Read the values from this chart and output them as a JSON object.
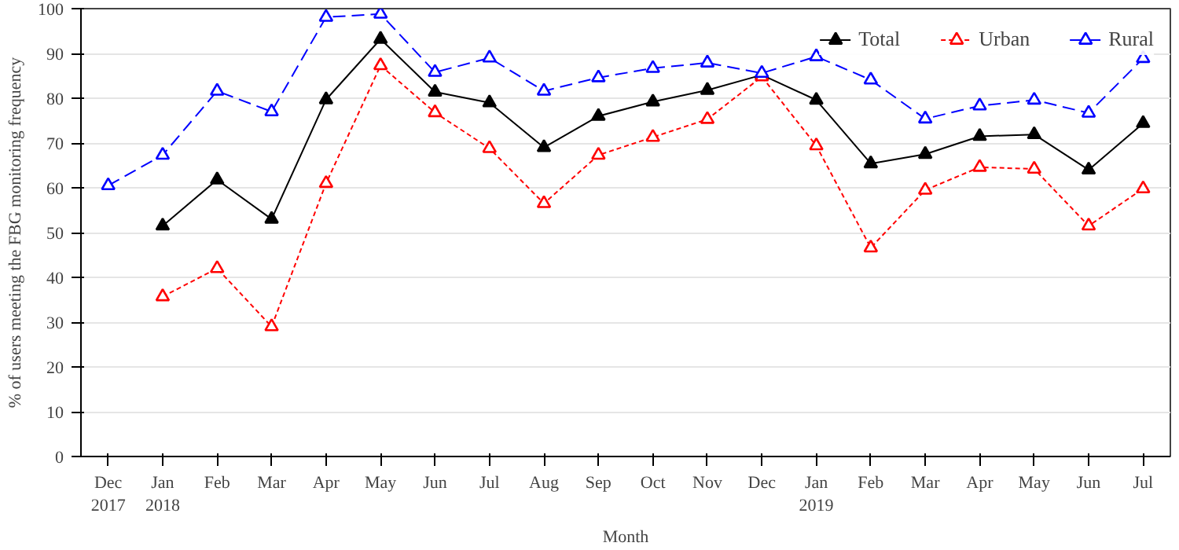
{
  "chart_data": {
    "type": "line",
    "xlabel": "Month",
    "ylabel": "% of users meeting the FBG monitoring frequency",
    "categories": [
      "Dec\n2017",
      "Jan\n2018",
      "Feb",
      "Mar",
      "Apr",
      "May",
      "Jun",
      "Jul",
      "Aug",
      "Sep",
      "Oct",
      "Nov",
      "Dec",
      "Jan\n2019",
      "Feb",
      "Mar",
      "Apr",
      "May",
      "Jun",
      "Jul"
    ],
    "series": [
      {
        "name": "Total",
        "color": "#000000",
        "line_style": "solid",
        "marker": "triangle",
        "values": [
          null,
          51.5,
          61.8,
          53,
          79.7,
          93.2,
          81.4,
          79,
          69,
          76,
          79.2,
          81.8,
          85.2,
          79.6,
          65.4,
          67.5,
          71.5,
          71.9,
          64,
          74.4
        ]
      },
      {
        "name": "Urban",
        "color": "#ff0000",
        "line_style": "dotted",
        "marker": "triangle",
        "values": [
          null,
          35.7,
          42,
          29,
          61,
          87.3,
          76.8,
          68.8,
          56.5,
          67.3,
          71.3,
          75.3,
          84.8,
          69.4,
          46.6,
          59.5,
          64.6,
          64.2,
          51.5,
          59.8
        ]
      },
      {
        "name": "Rural",
        "color": "#0000ff",
        "line_style": "dashed",
        "marker": "triangle",
        "values": [
          60.5,
          67.3,
          81.6,
          77,
          98.1,
          98.8,
          85.8,
          89,
          81.6,
          84.6,
          86.7,
          87.9,
          85.6,
          89.3,
          84.1,
          75.4,
          78.3,
          79.6,
          76.7,
          88.9
        ]
      }
    ],
    "ylim": [
      0,
      100
    ],
    "yticks": [
      0,
      10,
      20,
      30,
      40,
      50,
      60,
      70,
      80,
      90,
      100
    ],
    "grid": "y",
    "legend": "top right"
  }
}
